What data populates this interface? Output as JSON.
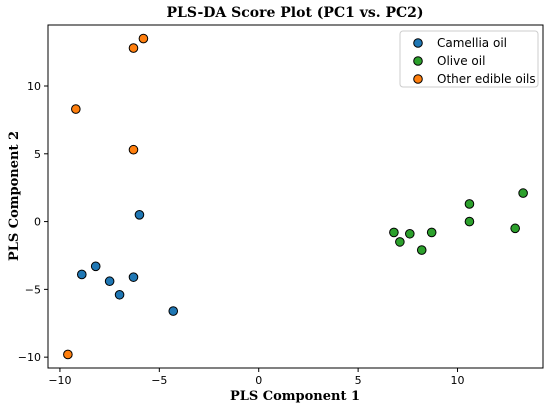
{
  "chart_data": {
    "type": "scatter",
    "title": "PLS-DA Score Plot (PC1 vs. PC2)",
    "xlabel": "PLS Component 1",
    "ylabel": "PLS Component 2",
    "xlim": [
      -10.6,
      14.3
    ],
    "ylim": [
      -10.8,
      14.5
    ],
    "xticks": [
      -10,
      -5,
      0,
      5,
      10
    ],
    "yticks": [
      -10,
      -5,
      0,
      5,
      10
    ],
    "legend_position": "top-right",
    "series": [
      {
        "name": "Camellia oil",
        "color": "#1f77b4",
        "points": [
          {
            "x": -8.9,
            "y": -3.9
          },
          {
            "x": -8.2,
            "y": -3.3
          },
          {
            "x": -7.5,
            "y": -4.4
          },
          {
            "x": -7.0,
            "y": -5.4
          },
          {
            "x": -6.3,
            "y": -4.1
          },
          {
            "x": -6.0,
            "y": 0.5
          },
          {
            "x": -4.3,
            "y": -6.6
          }
        ]
      },
      {
        "name": "Olive oil",
        "color": "#2ca02c",
        "points": [
          {
            "x": 6.8,
            "y": -0.8
          },
          {
            "x": 7.1,
            "y": -1.5
          },
          {
            "x": 7.6,
            "y": -0.9
          },
          {
            "x": 8.2,
            "y": -2.1
          },
          {
            "x": 8.7,
            "y": -0.8
          },
          {
            "x": 10.6,
            "y": 1.3
          },
          {
            "x": 10.6,
            "y": 0.0
          },
          {
            "x": 12.9,
            "y": -0.5
          },
          {
            "x": 13.3,
            "y": 2.1
          }
        ]
      },
      {
        "name": "Other edible oils",
        "color": "#ff7f0e",
        "points": [
          {
            "x": -9.6,
            "y": -9.8
          },
          {
            "x": -9.2,
            "y": 8.3
          },
          {
            "x": -6.3,
            "y": 12.8
          },
          {
            "x": -5.8,
            "y": 13.5
          },
          {
            "x": -6.3,
            "y": 5.3
          }
        ]
      }
    ]
  }
}
